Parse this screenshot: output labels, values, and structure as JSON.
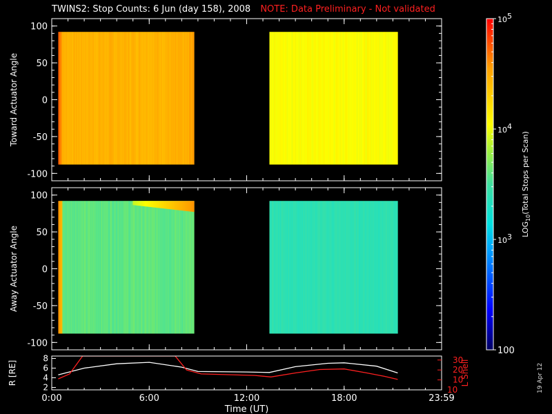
{
  "title": "TWINS2: Stop Counts:  6 Jun (day 158), 2008",
  "note": "NOTE: Data Preliminary - Not validated",
  "date_stamp": "19 Apr 12",
  "colors": {
    "background": "#000000",
    "axis": "#ffffff",
    "note": "#ff2020",
    "l_shell": "#ff2020",
    "r_line": "#ffffff"
  },
  "chart_data": [
    {
      "type": "heatmap",
      "ylabel": "Toward Actuator Angle",
      "ylim": [
        -110,
        110
      ],
      "yticks": [
        100,
        50,
        0,
        -50,
        -100
      ],
      "xlim": [
        0,
        24
      ],
      "data_blocks": [
        {
          "t_start": 0.4,
          "t_end": 8.75,
          "angle_range": [
            -88,
            92
          ],
          "log10_counts_approx": 4.45,
          "leading_edge_log10": 4.75
        },
        {
          "t_start": 13.4,
          "t_end": 21.3,
          "angle_range": [
            -88,
            92
          ],
          "log10_counts_approx": 4.05
        }
      ]
    },
    {
      "type": "heatmap",
      "ylabel": "Away Actuator Angle",
      "ylim": [
        -110,
        110
      ],
      "yticks": [
        100,
        50,
        0,
        -50,
        -100
      ],
      "xlim": [
        0,
        24
      ],
      "data_blocks": [
        {
          "t_start": 0.4,
          "t_end": 8.75,
          "angle_range": [
            -88,
            92
          ],
          "log10_counts_approx": 3.6,
          "leading_edge_log10": 4.6
        },
        {
          "t_start": 13.4,
          "t_end": 21.3,
          "angle_range": [
            -88,
            92
          ],
          "log10_counts_approx": 3.4
        }
      ]
    },
    {
      "type": "line",
      "xlabel": "Time (UT)",
      "xticks": [
        "0:00",
        "6:00",
        "12:00",
        "18:00",
        "23:59"
      ],
      "xtick_hours": [
        0,
        6,
        12,
        18,
        24
      ],
      "ylabel_left": "R [RE]",
      "ylabel_right": "L Shell",
      "yticks_left": [
        2,
        4,
        6,
        8
      ],
      "yticks_right": [
        10,
        20,
        30
      ],
      "ylim_left": [
        1.5,
        8.5
      ],
      "ylim_right": [
        0,
        34
      ],
      "series": [
        {
          "name": "R [RE]",
          "axis": "left",
          "x": [
            0.4,
            2,
            4,
            6,
            8,
            9,
            12,
            13.4,
            15,
            17,
            18,
            20,
            21.3
          ],
          "values": [
            4.6,
            6.0,
            6.9,
            7.2,
            6.2,
            5.3,
            5.2,
            5.1,
            6.3,
            7.0,
            7.1,
            6.4,
            5.0
          ]
        },
        {
          "name": "L Shell",
          "axis": "right",
          "x": [
            0.4,
            1.1,
            1.9,
            7.6,
            8.3,
            9.2,
            12.5,
            13.5,
            15.0,
            16.5,
            18.0,
            19.4,
            20.5,
            21.3
          ],
          "values": [
            11,
            16,
            34,
            34,
            20,
            16,
            14.5,
            13,
            17,
            20.5,
            21,
            17,
            13.5,
            10.5
          ]
        }
      ]
    },
    {
      "type": "colorbar",
      "label": "LOG10(Total Stops per Scan)",
      "label_main": "LOG",
      "label_sub": "10",
      "label_rest": "(Total Stops per Scan)",
      "tick_values_log10": [
        5,
        4,
        3,
        2
      ],
      "tick_labels": [
        {
          "base": "10",
          "exp": "5"
        },
        {
          "base": "10",
          "exp": "4"
        },
        {
          "base": "10",
          "exp": "3"
        },
        {
          "base": "100",
          "exp": ""
        }
      ],
      "range_log10": [
        2,
        5
      ]
    }
  ]
}
